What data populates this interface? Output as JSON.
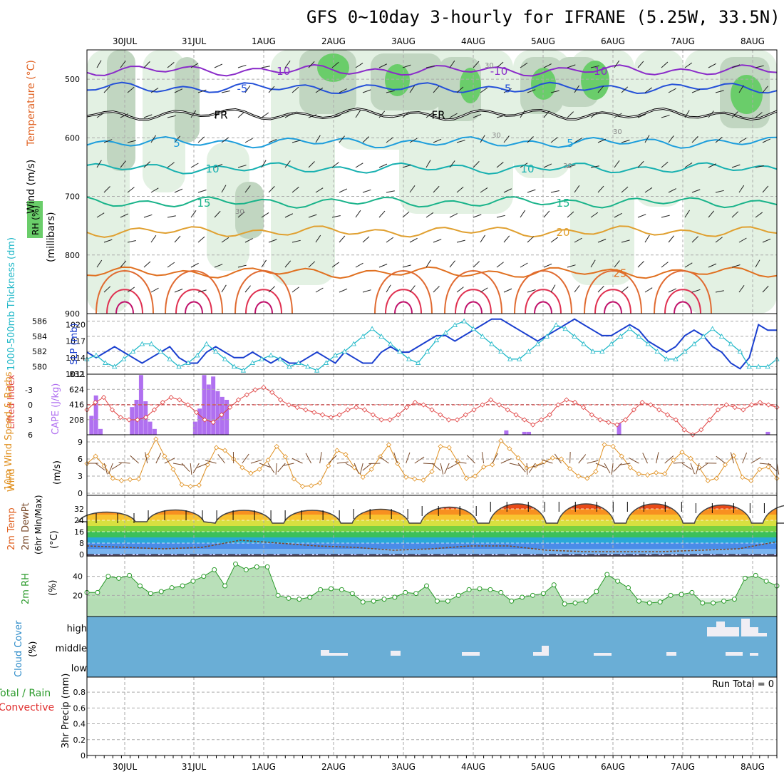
{
  "title": "GFS 0~10day 3-hourly for IFRANE (5.25W, 33.5N)",
  "dates": [
    "30JUL",
    "31JUL",
    "1AUG",
    "2AUG",
    "3AUG",
    "4AUG",
    "5AUG",
    "6AUG",
    "7AUG",
    "8AUG"
  ],
  "colors": {
    "rh_light": "#e3f1e3",
    "rh_mid": "#c1d6c1",
    "rh_dark": "#9fb29f",
    "rh_green": "#6acd6a",
    "cloud_blue": "#6aaed6",
    "grid": "#aaaaaa"
  },
  "chart_data": [
    {
      "type": "line",
      "panel": "upper-air",
      "ylabel_rh": "RH (%)",
      "ylabel_temp": "Temperature (°C)",
      "ylabel_wind": "Wind (m/s)",
      "ylabel_units": "(millibars)",
      "ylim": [
        900,
        450
      ],
      "yticks": [
        500,
        600,
        700,
        800,
        900
      ],
      "isotherms": [
        {
          "label": "-10",
          "level_mb": 485,
          "color": "#8a2bc9"
        },
        {
          "label": "-5",
          "level_mb": 515,
          "color": "#2450d8"
        },
        {
          "label": "FR",
          "level_mb": 560,
          "color": "#000000"
        },
        {
          "label": "5",
          "level_mb": 608,
          "color": "#1e9edc"
        },
        {
          "label": "10",
          "level_mb": 652,
          "color": "#17b0b0"
        },
        {
          "label": "15",
          "level_mb": 710,
          "color": "#19b38a"
        },
        {
          "label": "20",
          "level_mb": 760,
          "color": "#e0a030"
        },
        {
          "label": "25",
          "level_mb": 830,
          "color": "#e07020"
        }
      ],
      "rh_labels": [
        "30",
        "30",
        "30",
        "30",
        "30"
      ]
    },
    {
      "type": "line",
      "panel": "slp-thickness",
      "ylabel_left": "1000-500mb Thickness (dm)",
      "ylabel_right": "SLP (mb)",
      "thickness_ticks": [
        580,
        582,
        584,
        586
      ],
      "slp_ticks": [
        1011,
        1014,
        1017,
        1020
      ],
      "series": [
        {
          "name": "SLP",
          "color": "#1a3fcf",
          "values": [
            1015,
            1014,
            1015,
            1016,
            1015,
            1014,
            1013,
            1014,
            1015,
            1016,
            1014,
            1013,
            1013,
            1015,
            1016,
            1015,
            1014,
            1014,
            1015,
            1014,
            1013,
            1014,
            1013,
            1013,
            1014,
            1015,
            1014,
            1013,
            1015,
            1014,
            1013,
            1013,
            1015,
            1016,
            1015,
            1015,
            1016,
            1017,
            1018,
            1018,
            1017,
            1018,
            1019,
            1020,
            1021,
            1021,
            1020,
            1019,
            1018,
            1017,
            1018,
            1019,
            1020,
            1021,
            1020,
            1019,
            1018,
            1018,
            1019,
            1020,
            1019,
            1017,
            1016,
            1015,
            1016,
            1018,
            1019,
            1018,
            1016,
            1015,
            1013,
            1012,
            1014,
            1020,
            1019,
            1019
          ]
        },
        {
          "name": "Thickness",
          "color": "#20b8c8",
          "values": [
            581,
            581.5,
            580.5,
            580,
            581,
            582,
            583,
            583,
            582,
            581,
            580,
            580.5,
            581.5,
            583,
            582,
            581,
            580,
            579.5,
            580.5,
            581,
            581.5,
            581,
            580,
            580.5,
            580,
            579.5,
            580.5,
            581.5,
            582,
            583,
            584,
            585,
            584,
            583,
            582,
            581,
            580.5,
            582,
            583.5,
            584.5,
            585.5,
            586,
            585,
            584,
            583,
            582,
            581,
            581,
            582,
            583,
            584,
            585.5,
            585,
            584,
            583,
            582,
            582,
            583,
            584,
            585,
            584,
            583,
            582,
            581,
            581,
            582,
            583,
            584,
            585,
            584,
            583,
            582,
            580,
            580,
            580,
            581
          ]
        }
      ]
    },
    {
      "type": "bar",
      "panel": "cape-li",
      "ylabel_left": "Lifted Index",
      "ylabel_right": "CAPE (J/kg)",
      "li_ticks": [
        "-3",
        "0",
        "3",
        "6"
      ],
      "cape_ticks": [
        "208",
        "416",
        "624",
        "832"
      ],
      "cape": [
        0,
        260,
        540,
        80,
        0,
        0,
        0,
        0,
        0,
        0,
        380,
        480,
        820,
        460,
        180,
        80,
        0,
        0,
        0,
        0,
        0,
        0,
        0,
        0,
        180,
        360,
        820,
        690,
        800,
        600,
        520,
        480,
        0,
        0,
        0,
        0,
        0,
        0,
        0,
        0,
        0,
        0,
        0,
        0,
        0,
        0,
        0,
        0,
        0,
        0,
        0,
        0,
        0,
        0,
        0,
        0,
        0,
        0,
        0,
        0,
        0,
        0,
        0,
        0,
        0,
        0,
        0,
        0,
        0,
        0,
        0,
        0,
        0,
        0,
        0,
        0,
        0,
        0,
        0,
        0,
        0,
        0,
        0,
        0,
        0,
        0,
        0,
        0,
        0,
        0,
        0,
        0,
        0,
        60,
        0,
        0,
        0,
        40,
        40,
        0,
        0,
        0,
        0,
        0,
        0,
        0,
        0,
        0,
        0,
        0,
        0,
        0,
        0,
        0,
        0,
        0,
        0,
        0,
        160,
        0,
        0,
        0,
        0,
        0,
        0,
        0,
        0,
        0,
        0,
        0,
        0,
        0,
        0,
        0,
        0,
        0,
        0,
        0,
        0,
        0,
        0,
        0,
        0,
        0,
        0,
        0,
        0,
        0,
        0,
        0,
        0,
        40,
        0,
        0
      ],
      "lifted_index": [
        1,
        -0.5,
        -1.5,
        1,
        2.5,
        3,
        3,
        2.5,
        1,
        -0.5,
        -1.5,
        -1,
        0,
        1.5,
        3,
        3.5,
        2,
        0.5,
        -1,
        -2,
        -3,
        -3.5,
        -2.5,
        -1,
        0,
        0.5,
        1,
        1.5,
        2,
        2.5,
        2,
        1,
        0.5,
        1,
        2,
        3,
        3,
        2,
        0.5,
        -0.5,
        0,
        1,
        2,
        3,
        3,
        2,
        1,
        0,
        -1,
        0,
        1,
        2,
        3,
        4,
        3,
        2,
        0,
        -1,
        -0.5,
        0.5,
        2,
        3,
        3.5,
        4,
        3,
        1,
        -0.5,
        0,
        1,
        2,
        3,
        5,
        6,
        5,
        3,
        1,
        0,
        0.5,
        1,
        0,
        -0.5,
        0,
        0.5
      ]
    },
    {
      "type": "line",
      "panel": "10m-wind",
      "ylabel": "10m Wind Speed & Barbs",
      "units": "(m/s)",
      "yticks": [
        0,
        3,
        6,
        9
      ],
      "values": [
        5.2,
        6.5,
        4.8,
        2.6,
        2.2,
        2.4,
        2.5,
        6.5,
        9.5,
        6.5,
        4.2,
        1.5,
        1.2,
        1.4,
        5,
        8,
        7.5,
        6,
        4.5,
        3.5,
        4.2,
        5.8,
        8.2,
        6.4,
        2.5,
        1.2,
        1.3,
        1.8,
        4.8,
        7.5,
        6.8,
        4.5,
        2.8,
        4.2,
        6.4,
        8.5,
        5.2,
        2.8,
        2.5,
        2.3,
        3.8,
        8.2,
        8,
        5.5,
        2.6,
        3,
        4.6,
        5,
        9.2,
        7.8,
        6.2,
        4.4,
        4.8,
        5.5,
        6.2,
        6,
        4.3,
        3,
        2.6,
        3.8,
        8.5,
        8.2,
        6.5,
        4.5,
        3.4,
        3.2,
        3.6,
        3.4,
        5.8,
        7.2,
        6.1,
        4.5,
        2.2,
        2.6,
        5,
        6.6,
        2.8,
        2.2,
        4.2,
        4.6,
        2.6
      ]
    },
    {
      "type": "area",
      "panel": "2m-temp",
      "ylabel": "2m Temp 2m DewPt (6hr Min/Max)",
      "units": "(°C)",
      "yticks": [
        0,
        8,
        16,
        24,
        32
      ],
      "tmin_labels": [
        "0",
        "8",
        "16",
        "24",
        "32"
      ],
      "temp_peaks": [
        28,
        30,
        30,
        30,
        31,
        33,
        36,
        36,
        36,
        35,
        35
      ],
      "temp_troughs": [
        23,
        23,
        22,
        22,
        22,
        22,
        22,
        22,
        22,
        22,
        22
      ],
      "dewpoint": [
        6,
        5,
        4,
        5,
        10,
        8,
        6,
        5,
        3,
        4,
        6,
        6,
        3,
        2,
        2,
        2,
        3,
        4,
        9
      ]
    },
    {
      "type": "area",
      "panel": "2m-rh",
      "ylabel": "2m RH",
      "units": "(%)",
      "yticks": [
        20,
        40
      ],
      "values": [
        23,
        23,
        40,
        38,
        41,
        30,
        22,
        24,
        28,
        30,
        35,
        40,
        47,
        30,
        53,
        47,
        50,
        50,
        20,
        17,
        16,
        18,
        26,
        27,
        26,
        22,
        13,
        14,
        16,
        18,
        23,
        22,
        30,
        14,
        14,
        20,
        26,
        27,
        26,
        23,
        14,
        18,
        20,
        22,
        31,
        11,
        12,
        14,
        24,
        42,
        35,
        28,
        14,
        12,
        13,
        20,
        21,
        23,
        12,
        12,
        14,
        16,
        38,
        41,
        35,
        30
      ]
    },
    {
      "type": "heatmap",
      "panel": "cloud-cover",
      "ylabel": "Cloud Cover (%)",
      "levels": [
        "high",
        "middle",
        "low"
      ]
    },
    {
      "type": "bar",
      "panel": "precip",
      "ylabel_total": "Total / Rain",
      "ylabel_conv": "Convective",
      "ylabel_units": "3hr Precip (mm)",
      "yticks": [
        "0",
        "0.2",
        "0.4",
        "0.6",
        "0.8"
      ],
      "run_total": "Run Total = 0"
    }
  ]
}
